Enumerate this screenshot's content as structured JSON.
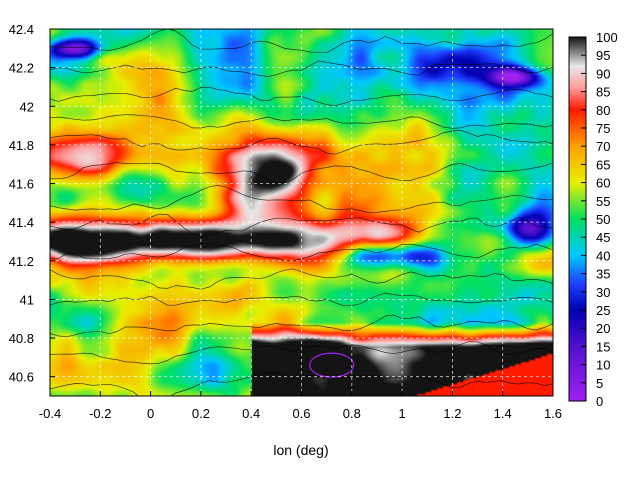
{
  "chart_data": {
    "type": "heatmap",
    "title": "",
    "xlabel": "lon (deg)",
    "ylabel": "",
    "xlim": [
      -0.4,
      1.6
    ],
    "ylim": [
      40.5,
      42.4
    ],
    "x_ticks": [
      "-0.4",
      "-0.2",
      "0",
      "0.2",
      "0.4",
      "0.6",
      "0.8",
      "1",
      "1.2",
      "1.4",
      "1.6"
    ],
    "y_ticks": [
      "40.6",
      "40.8",
      "41",
      "41.2",
      "41.4",
      "41.6",
      "41.8",
      "42",
      "42.2",
      "42.4"
    ],
    "colorbar": {
      "range": [
        0,
        100
      ],
      "ticks": [
        "0",
        "5",
        "10",
        "15",
        "20",
        "25",
        "30",
        "35",
        "40",
        "45",
        "50",
        "55",
        "60",
        "65",
        "70",
        "75",
        "80",
        "85",
        "90",
        "95",
        "100"
      ],
      "stops": [
        {
          "value": 0,
          "color": "#a020f0"
        },
        {
          "value": 15,
          "color": "#5010d0"
        },
        {
          "value": 25,
          "color": "#0000b0"
        },
        {
          "value": 32,
          "color": "#1e3cff"
        },
        {
          "value": 40,
          "color": "#00c8ff"
        },
        {
          "value": 50,
          "color": "#00e060"
        },
        {
          "value": 60,
          "color": "#e8f000"
        },
        {
          "value": 70,
          "color": "#ffa000"
        },
        {
          "value": 80,
          "color": "#ff1a00"
        },
        {
          "value": 86,
          "color": "#ff9a9a"
        },
        {
          "value": 92,
          "color": "#e8e8e8"
        },
        {
          "value": 100,
          "color": "#141414"
        }
      ]
    },
    "grid": true,
    "contours": "thin black isolines over field; purple contour near lon 0.6–0.8, lat 40.6–40.7"
  }
}
